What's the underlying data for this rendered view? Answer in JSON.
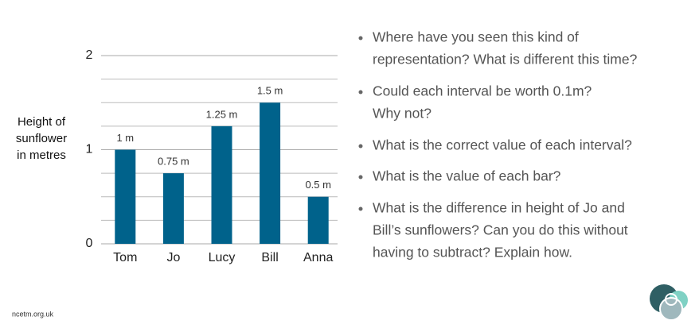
{
  "chart_data": {
    "type": "bar",
    "ylabel": [
      "Height of",
      "sunflower",
      "in metres"
    ],
    "categories": [
      "Tom",
      "Jo",
      "Lucy",
      "Bill",
      "Anna"
    ],
    "values": [
      1,
      0.75,
      1.25,
      1.5,
      0.5
    ],
    "value_labels": [
      "1 m",
      "0.75 m",
      "1.25 m",
      "1.5 m",
      "0.5 m"
    ],
    "color": "#00628b",
    "ylim": [
      0,
      2
    ],
    "yticks": [
      0,
      1,
      2
    ],
    "minor_yticks": [
      0.25,
      0.5,
      0.75,
      1.25,
      1.5,
      1.75
    ],
    "grid": true
  },
  "bullets": [
    [
      "Where have you seen this kind of",
      "representation? What is different this time?"
    ],
    [
      "Could each interval be worth 0.1m?",
      "Why not?"
    ],
    [
      "What is the correct value of each interval?"
    ],
    [
      "What is the value of each bar?"
    ],
    [
      "What is the difference in height of Jo and",
      "Bill’s sunflowers? Can you do this without",
      "having to subtract? Explain how."
    ]
  ],
  "footer": "ncetm.org.uk"
}
